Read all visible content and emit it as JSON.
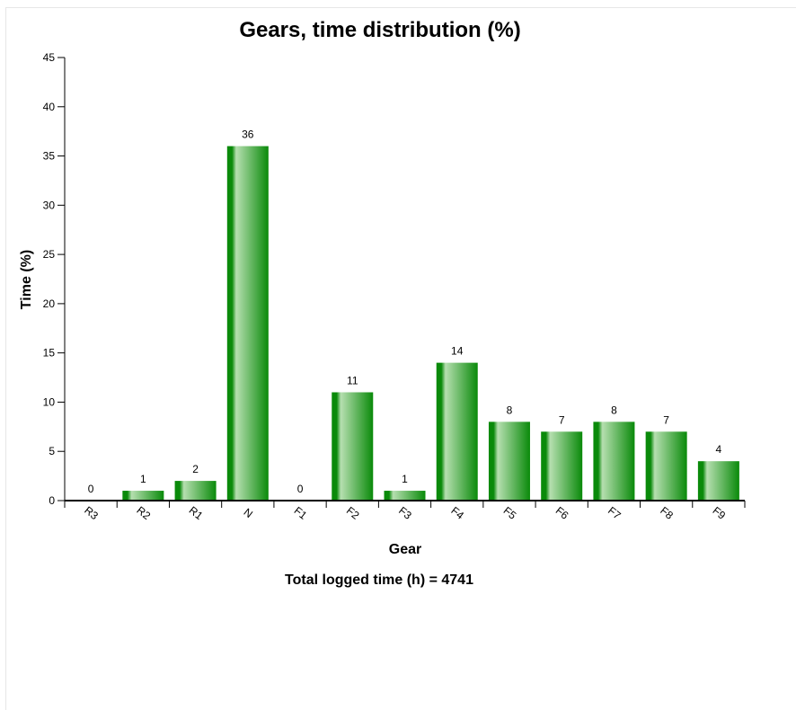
{
  "chart_data": {
    "type": "bar",
    "title": "Gears, time distribution (%)",
    "xlabel": "Gear",
    "ylabel": "Time (%)",
    "ylim": [
      0,
      45
    ],
    "yticks": [
      0,
      5,
      10,
      15,
      20,
      25,
      30,
      35,
      40,
      45
    ],
    "categories": [
      "R3",
      "R2",
      "R1",
      "N",
      "F1",
      "F2",
      "F3",
      "F4",
      "F5",
      "F6",
      "F7",
      "F8",
      "F9"
    ],
    "values": [
      0,
      1,
      2,
      36,
      0,
      11,
      1,
      14,
      8,
      7,
      8,
      7,
      4
    ],
    "bar_color": "#0a8a0a",
    "bar_highlight": "#b6dfb0",
    "grid": false,
    "legend": "none",
    "footer": "Total logged time (h) = 4741"
  }
}
